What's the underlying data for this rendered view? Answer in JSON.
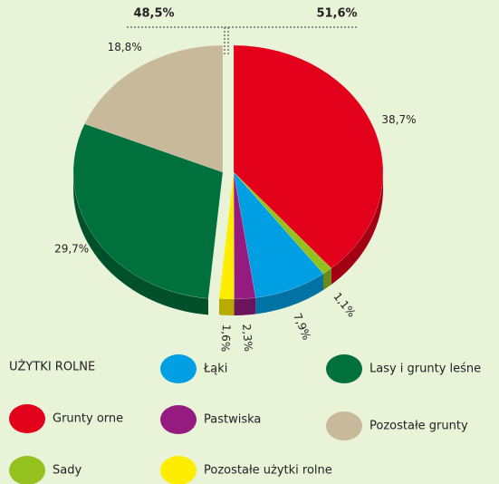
{
  "chart_data": {
    "type": "pie",
    "categories": [
      "Grunty orne",
      "Sady",
      "Łąki",
      "Pastwiska",
      "Pozostałe użytki rolne",
      "Lasy i grunty leśne",
      "Pozostałe grunty"
    ],
    "values": [
      38.7,
      1.1,
      7.9,
      2.3,
      1.6,
      29.7,
      18.8
    ],
    "value_labels": [
      "38,7%",
      "1,1%",
      "7,9%",
      "2,3%",
      "1,6%",
      "29,7%",
      "18,8%"
    ],
    "colors": [
      "#e2001a",
      "#95c11f",
      "#009fe3",
      "#951b81",
      "#ffed00",
      "#00703c",
      "#c9b99b"
    ],
    "legend_title": "UŻYTKI ROLNE",
    "groups": [
      {
        "label": "48,5%",
        "value": 48.5
      },
      {
        "label": "51,6%",
        "value": 51.6
      }
    ]
  }
}
